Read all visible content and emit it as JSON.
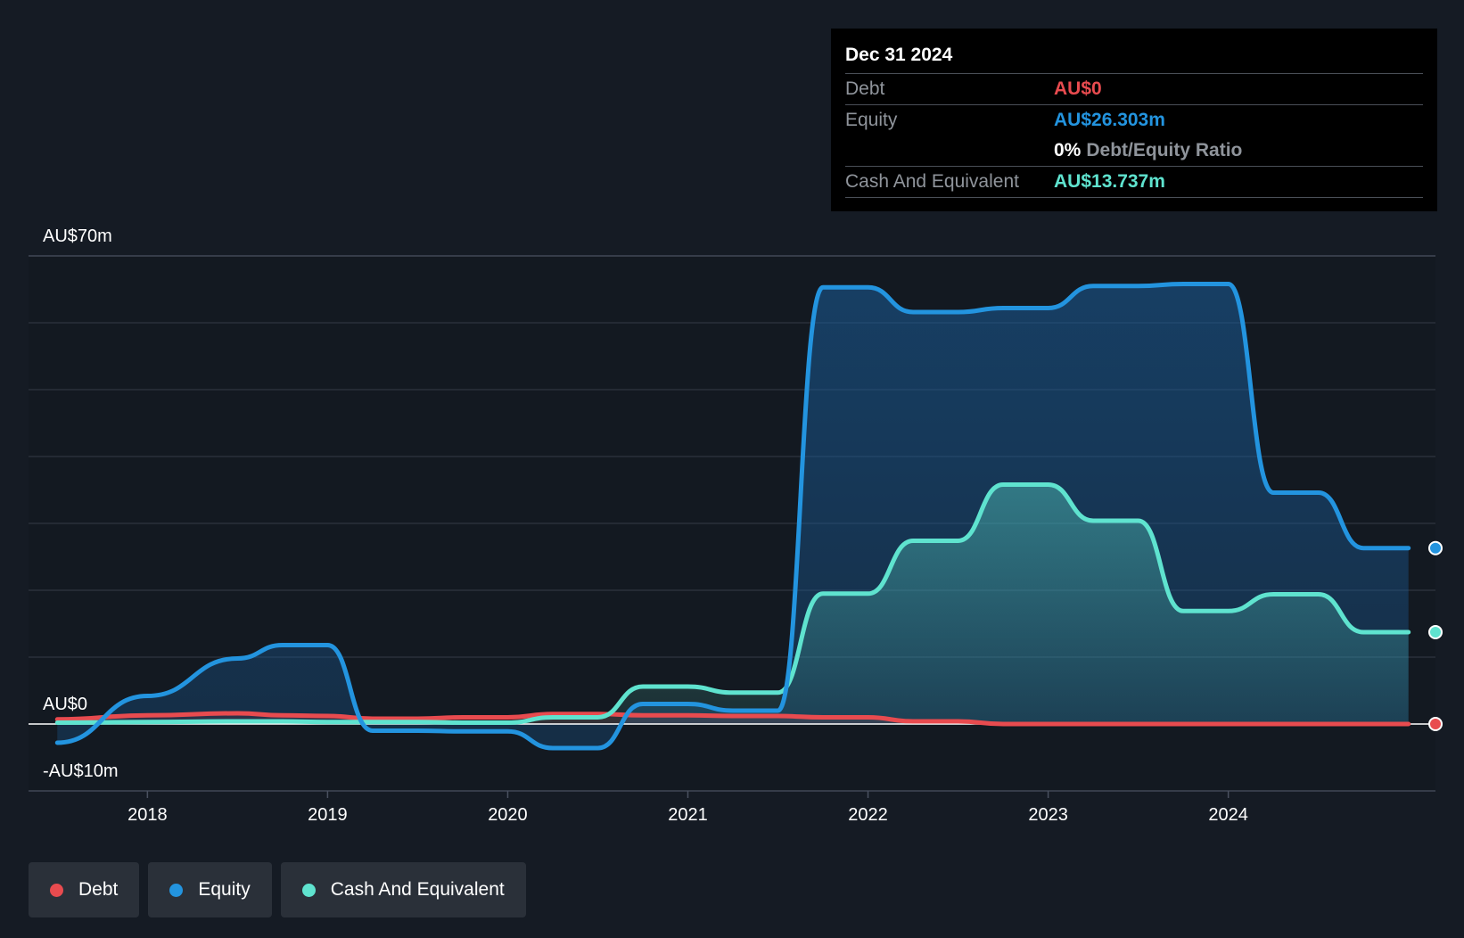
{
  "tooltip": {
    "date": "Dec 31 2024",
    "debt_label": "Debt",
    "debt_value": "AU$0",
    "equity_label": "Equity",
    "equity_value": "AU$26.303m",
    "ratio_value": "0%",
    "ratio_label": "Debt/Equity Ratio",
    "cash_label": "Cash And Equivalent",
    "cash_value": "AU$13.737m"
  },
  "legend": [
    {
      "label": "Debt",
      "color": "#e84b4f"
    },
    {
      "label": "Equity",
      "color": "#2394df"
    },
    {
      "label": "Cash And Equivalent",
      "color": "#5fe3cf"
    }
  ],
  "chart_data": {
    "type": "area",
    "y_tick_labels": [
      "AU$70m",
      "AU$0",
      "-AU$10m"
    ],
    "ylim": [
      -10,
      70
    ],
    "xlim": [
      2017.34,
      2025.15
    ],
    "x_ticks": [
      2018,
      2019,
      2020,
      2021,
      2022,
      2023,
      2024
    ],
    "x_tick_labels": [
      "2018",
      "2019",
      "2020",
      "2021",
      "2022",
      "2023",
      "2024"
    ],
    "grid": true,
    "legend_position": "bottom-left",
    "colors": {
      "debt": "#e84b4f",
      "equity": "#2394df",
      "cash": "#5fe3cf"
    },
    "series": [
      {
        "name": "Debt",
        "x": [
          2017.5,
          2018.0,
          2018.5,
          2018.75,
          2019.0,
          2019.25,
          2019.5,
          2019.75,
          2020.0,
          2020.25,
          2020.5,
          2020.75,
          2021.0,
          2021.25,
          2021.5,
          2021.75,
          2022.0,
          2022.25,
          2022.5,
          2022.75,
          2023.0,
          2023.25,
          2023.5,
          2023.75,
          2024.0,
          2024.25,
          2024.5,
          2024.75,
          2025.0
        ],
        "values": [
          0.7,
          1.3,
          1.6,
          1.3,
          1.2,
          0.8,
          0.8,
          1.0,
          1.0,
          1.5,
          1.5,
          1.3,
          1.3,
          1.2,
          1.2,
          1.0,
          1.0,
          0.4,
          0.4,
          0.0,
          0.0,
          0.0,
          0.0,
          0.0,
          0.0,
          0.0,
          0.0,
          0.0,
          0.0
        ]
      },
      {
        "name": "Equity",
        "x": [
          2017.5,
          2018.0,
          2018.5,
          2018.75,
          2019.0,
          2019.25,
          2019.5,
          2019.75,
          2020.0,
          2020.25,
          2020.5,
          2020.75,
          2021.0,
          2021.25,
          2021.5,
          2021.75,
          2022.0,
          2022.25,
          2022.5,
          2022.75,
          2023.0,
          2023.25,
          2023.5,
          2023.75,
          2024.0,
          2024.25,
          2024.5,
          2024.75,
          2025.0
        ],
        "values": [
          -2.8,
          4.2,
          9.8,
          11.8,
          11.8,
          -1.0,
          -1.0,
          -1.1,
          -1.1,
          -3.6,
          -3.6,
          3.0,
          3.0,
          2.0,
          2.0,
          65.3,
          65.3,
          61.6,
          61.6,
          62.2,
          62.2,
          65.5,
          65.5,
          65.8,
          65.8,
          34.6,
          34.6,
          26.303,
          26.303
        ]
      },
      {
        "name": "Cash And Equivalent",
        "x": [
          2017.5,
          2018.0,
          2018.5,
          2018.75,
          2019.0,
          2019.25,
          2019.5,
          2019.75,
          2020.0,
          2020.25,
          2020.5,
          2020.75,
          2021.0,
          2021.25,
          2021.5,
          2021.75,
          2022.0,
          2022.25,
          2022.5,
          2022.75,
          2023.0,
          2023.25,
          2023.5,
          2023.75,
          2024.0,
          2024.25,
          2024.5,
          2024.75,
          2025.0
        ],
        "values": [
          0.2,
          0.3,
          0.4,
          0.4,
          0.3,
          0.3,
          0.3,
          0.2,
          0.2,
          1.0,
          1.0,
          5.6,
          5.6,
          4.7,
          4.7,
          19.5,
          19.5,
          27.4,
          27.4,
          35.8,
          35.8,
          30.4,
          30.4,
          16.9,
          16.9,
          19.4,
          19.4,
          13.737,
          13.737
        ]
      }
    ]
  }
}
